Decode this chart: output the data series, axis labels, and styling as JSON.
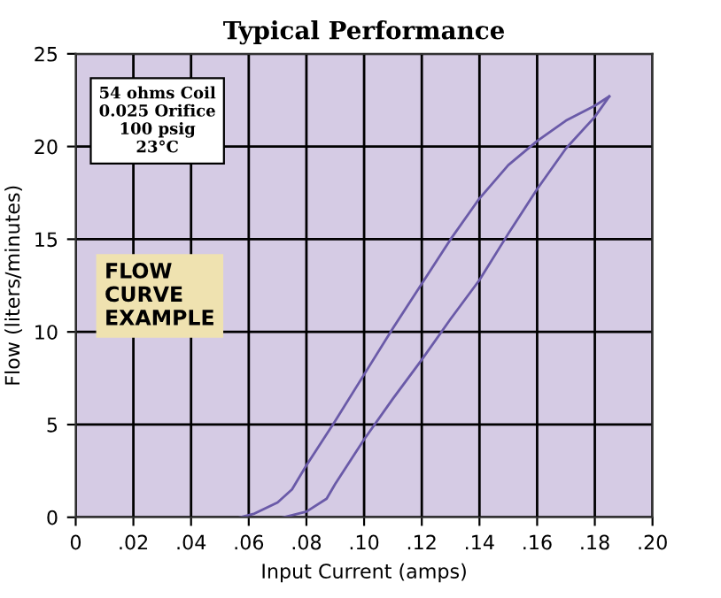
{
  "chart_data": {
    "type": "line",
    "title": "Typical Performance",
    "xlabel": "Input Current (amps)",
    "ylabel": "Flow (liters/minutes)",
    "series": [
      {
        "color": "#6a5aa8",
        "x": [
          0.057,
          0.062,
          0.07,
          0.075,
          0.08,
          0.09,
          0.1,
          0.11,
          0.12,
          0.13,
          0.14,
          0.15,
          0.16,
          0.17,
          0.18,
          0.185
        ],
        "values": [
          0,
          0.2,
          0.8,
          1.5,
          2.8,
          5.2,
          7.7,
          10.2,
          12.6,
          15.0,
          17.2,
          19.0,
          20.3,
          21.4,
          22.2,
          22.7
        ]
      },
      {
        "color": "#6a5aa8",
        "x": [
          0.072,
          0.08,
          0.087,
          0.09,
          0.1,
          0.11,
          0.12,
          0.13,
          0.14,
          0.15,
          0.16,
          0.17,
          0.18,
          0.185
        ],
        "values": [
          0,
          0.3,
          1.0,
          1.8,
          4.2,
          6.4,
          8.5,
          10.7,
          12.8,
          15.3,
          17.7,
          19.9,
          21.6,
          22.7
        ]
      }
    ],
    "xlim": [
      0,
      0.2
    ],
    "ylim": [
      0,
      25
    ],
    "xticks": [
      0,
      {
        "value": 0.02,
        "label": ".02"
      },
      {
        "value": 0.04,
        "label": ".04"
      },
      {
        "value": 0.06,
        "label": ".06"
      },
      {
        "value": 0.08,
        "label": ".08"
      },
      {
        "value": 0.1,
        "label": ".10"
      },
      {
        "value": 0.12,
        "label": ".12"
      },
      {
        "value": 0.14,
        "label": ".14"
      },
      {
        "value": 0.16,
        "label": ".16"
      },
      {
        "value": 0.18,
        "label": ".18"
      },
      {
        "value": 0.2,
        "label": ".20"
      }
    ],
    "yticks": [
      0,
      5,
      10,
      15,
      20,
      25
    ],
    "grid": true,
    "marker": "none",
    "line_style": "solid",
    "legend": false,
    "annotations": [
      "54 ohms Coil\n0.025 Orifice\n100 psig\n23°C",
      "FLOW\nCURVE\nEXAMPLE"
    ]
  }
}
